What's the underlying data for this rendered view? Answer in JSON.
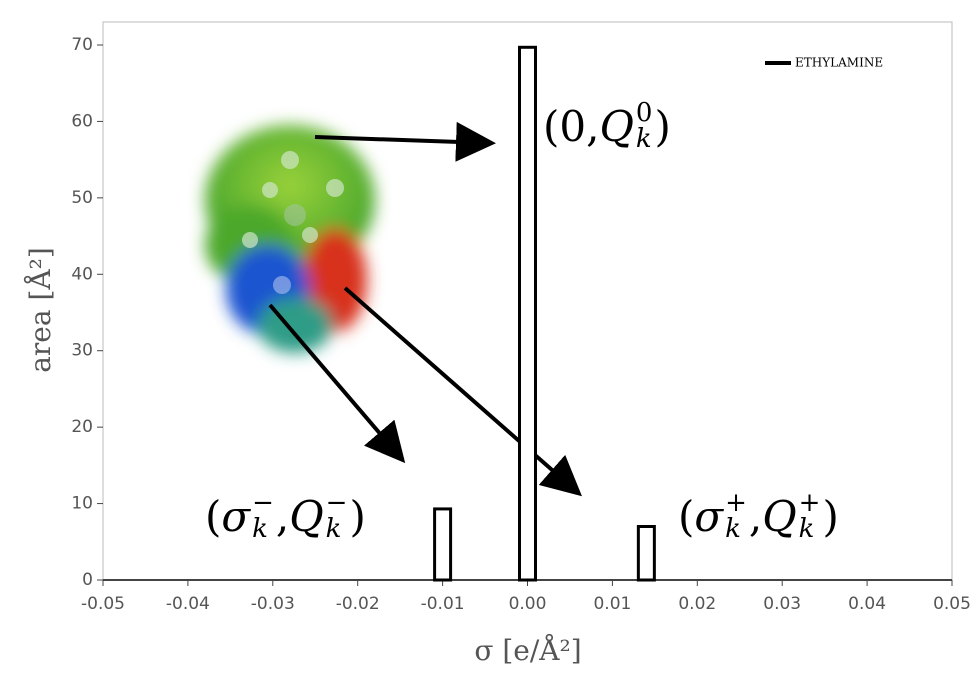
{
  "chart_data": {
    "type": "bar",
    "x_label": "σ [e/Å²]",
    "y_label": "area [Å²]",
    "x": [
      -0.01,
      0,
      0.014
    ],
    "series": [
      {
        "name": "ETHYLAMINE",
        "color": "#000000",
        "values": [
          9.3,
          69.7,
          7
        ]
      }
    ],
    "xlim": [
      -0.05,
      0.05
    ],
    "xticks": [
      -0.05,
      -0.04,
      -0.03,
      -0.02,
      -0.01,
      {
        "value": 0,
        "label": "0.00"
      },
      0.01,
      0.02,
      0.03,
      0.04,
      0.05
    ],
    "ylim": [
      0,
      70
    ],
    "yticks": [
      0,
      10,
      20,
      30,
      40,
      50,
      60,
      70
    ],
    "legend": "top-right",
    "annotations": [
      {
        "segments": [
          {
            "text": "(0, "
          },
          {
            "italic": "Q"
          },
          {
            "sub": "k",
            "sup": "0"
          },
          {
            "text": ")"
          }
        ]
      },
      {
        "segments": [
          {
            "text": "("
          },
          {
            "italic": "σ"
          },
          {
            "sub": "k",
            "sup": "−"
          },
          {
            "text": ", "
          },
          {
            "italic": "Q"
          },
          {
            "sub": "k",
            "sup": "−"
          },
          {
            "text": ")"
          }
        ]
      },
      {
        "segments": [
          {
            "text": "("
          },
          {
            "italic": "σ"
          },
          {
            "sub": "k",
            "sup": "+"
          },
          {
            "text": ", "
          },
          {
            "italic": "Q"
          },
          {
            "sub": "k",
            "sup": "+"
          },
          {
            "text": ")"
          }
        ]
      }
    ]
  }
}
